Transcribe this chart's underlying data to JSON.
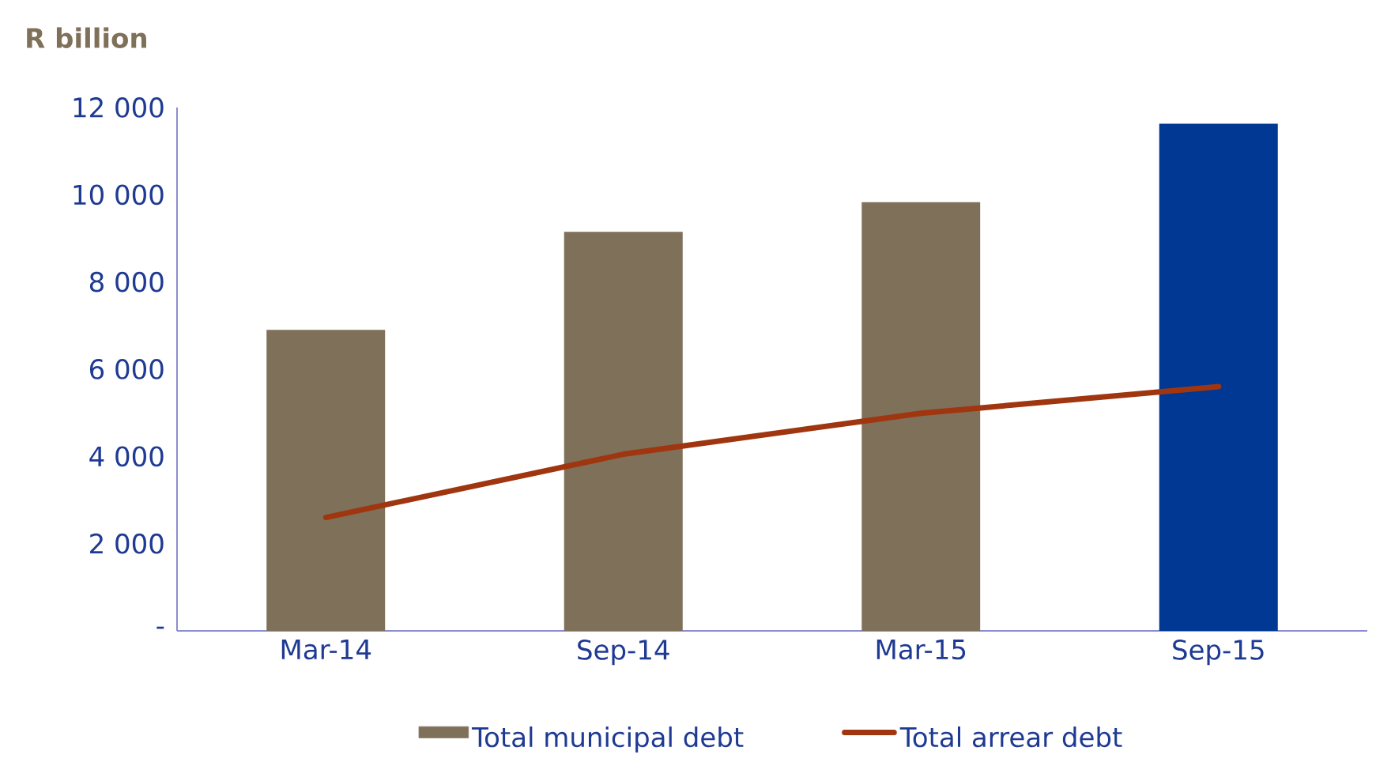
{
  "chart_data": {
    "type": "bar",
    "ylabel": "R billion",
    "categories": [
      "Mar-14",
      "Sep-14",
      "Mar-15",
      "Sep-15"
    ],
    "ylim": [
      0,
      12000
    ],
    "yticks": [
      {
        "value": 0,
        "label": "-"
      },
      {
        "value": 2000,
        "label": "2 000"
      },
      {
        "value": 4000,
        "label": "4 000"
      },
      {
        "value": 6000,
        "label": "6 000"
      },
      {
        "value": 8000,
        "label": "8 000"
      },
      {
        "value": 10000,
        "label": "10 000"
      },
      {
        "value": 12000,
        "label": "12 000"
      }
    ],
    "grid": false,
    "legend": "bottom",
    "series": [
      {
        "name": "Total municipal debt",
        "colors": [
          "#7f705a",
          "#7f705a",
          "#7f705a",
          "#003893"
        ],
        "values": [
          6900,
          9150,
          9830,
          11630
        ]
      },
      {
        "name": "Total arrear debt",
        "type": "line",
        "color": "#a0360f",
        "values": [
          2600,
          4050,
          4990,
          5600
        ]
      }
    ]
  }
}
